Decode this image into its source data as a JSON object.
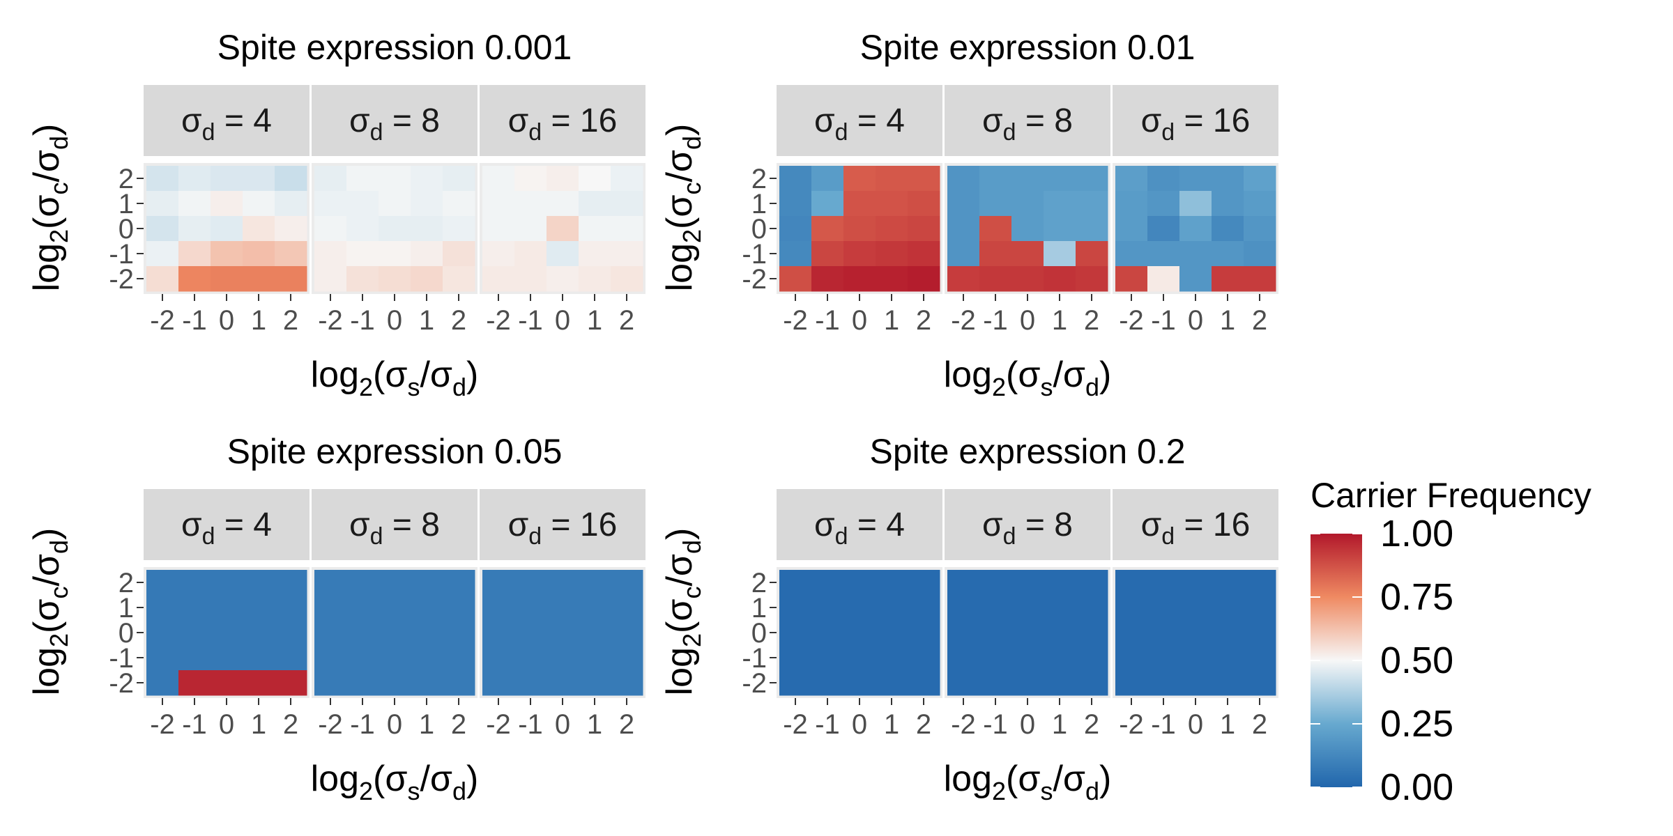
{
  "chart_data": {
    "type": "heatmap",
    "x_values": [
      -2,
      -1,
      0,
      1,
      2
    ],
    "y_values": [
      2,
      1,
      0,
      -1,
      -2
    ],
    "x_tick_labels": [
      "-2",
      "-1",
      "0",
      "1",
      "2"
    ],
    "y_tick_labels": [
      "2",
      "1",
      "0",
      "-1",
      "-2"
    ],
    "xlabel_base": "log",
    "xlabel_sub": "2",
    "xlabel_open": "(σ",
    "xlabel_num_sub": "s",
    "xlabel_slash": "/σ",
    "xlabel_den_sub": "d",
    "xlabel_close": ")",
    "ylabel_base": "log",
    "ylabel_sub": "2",
    "ylabel_open": "(σ",
    "ylabel_num_sub": "c",
    "ylabel_slash": "/σ",
    "ylabel_den_sub": "d",
    "ylabel_close": ")",
    "legend": {
      "title": "Carrier Frequency",
      "range": [
        0,
        1
      ],
      "ticks": [
        "0.00",
        "0.25",
        "0.50",
        "0.75",
        "1.00"
      ],
      "colors": {
        "low": "#2166ac",
        "lowmid": "#67a9cf",
        "mid": "#f7f7f7",
        "highmid": "#ef8a62",
        "high": "#b2182b"
      },
      "position": "right"
    },
    "panels": [
      {
        "title": "Spite expression 0.001",
        "facets": [
          {
            "label": "σ",
            "label_sub": "d",
            "label_eq": " = 4",
            "values": [
              [
                0.44,
                0.46,
                0.45,
                0.45,
                0.42
              ],
              [
                0.47,
                0.49,
                0.52,
                0.49,
                0.47
              ],
              [
                0.44,
                0.47,
                0.46,
                0.54,
                0.52
              ],
              [
                0.48,
                0.57,
                0.62,
                0.63,
                0.61
              ],
              [
                0.56,
                0.76,
                0.77,
                0.77,
                0.77
              ]
            ]
          },
          {
            "label": "σ",
            "label_sub": "d",
            "label_eq": " = 8",
            "values": [
              [
                0.47,
                0.49,
                0.49,
                0.48,
                0.47
              ],
              [
                0.48,
                0.48,
                0.49,
                0.48,
                0.49
              ],
              [
                0.49,
                0.48,
                0.47,
                0.47,
                0.48
              ],
              [
                0.52,
                0.51,
                0.51,
                0.52,
                0.55
              ],
              [
                0.52,
                0.55,
                0.56,
                0.57,
                0.54
              ]
            ]
          },
          {
            "label": "σ",
            "label_sub": "d",
            "label_eq": " = 16",
            "values": [
              [
                0.49,
                0.51,
                0.52,
                0.5,
                0.48
              ],
              [
                0.49,
                0.49,
                0.49,
                0.47,
                0.47
              ],
              [
                0.49,
                0.49,
                0.58,
                0.49,
                0.49
              ],
              [
                0.52,
                0.53,
                0.46,
                0.52,
                0.52
              ],
              [
                0.53,
                0.53,
                0.52,
                0.53,
                0.54
              ]
            ]
          }
        ]
      },
      {
        "title": "Spite expression 0.01",
        "facets": [
          {
            "label": "σ",
            "label_sub": "d",
            "label_eq": " = 4",
            "values": [
              [
                0.13,
                0.2,
                0.85,
                0.86,
                0.86
              ],
              [
                0.13,
                0.25,
                0.87,
                0.87,
                0.88
              ],
              [
                0.12,
                0.86,
                0.88,
                0.89,
                0.9
              ],
              [
                0.13,
                0.9,
                0.92,
                0.93,
                0.94
              ],
              [
                0.88,
                0.97,
                0.98,
                0.98,
                0.99
              ]
            ]
          },
          {
            "label": "σ",
            "label_sub": "d",
            "label_eq": " = 8",
            "values": [
              [
                0.17,
                0.2,
                0.2,
                0.2,
                0.2
              ],
              [
                0.17,
                0.2,
                0.2,
                0.22,
                0.22
              ],
              [
                0.17,
                0.88,
                0.2,
                0.22,
                0.22
              ],
              [
                0.17,
                0.9,
                0.9,
                0.36,
                0.9
              ],
              [
                0.92,
                0.93,
                0.93,
                0.94,
                0.93
              ]
            ]
          },
          {
            "label": "σ",
            "label_sub": "d",
            "label_eq": " = 16",
            "values": [
              [
                0.21,
                0.16,
                0.18,
                0.18,
                0.22
              ],
              [
                0.2,
                0.18,
                0.32,
                0.18,
                0.2
              ],
              [
                0.2,
                0.12,
                0.22,
                0.13,
                0.18
              ],
              [
                0.18,
                0.18,
                0.18,
                0.18,
                0.16
              ],
              [
                0.9,
                0.53,
                0.18,
                0.92,
                0.92
              ]
            ]
          }
        ]
      },
      {
        "title": "Spite expression 0.05",
        "facets": [
          {
            "label": "σ",
            "label_sub": "d",
            "label_eq": " = 4",
            "values": [
              [
                0.07,
                0.07,
                0.07,
                0.07,
                0.07
              ],
              [
                0.07,
                0.07,
                0.07,
                0.07,
                0.07
              ],
              [
                0.07,
                0.07,
                0.07,
                0.07,
                0.07
              ],
              [
                0.07,
                0.07,
                0.07,
                0.07,
                0.07
              ],
              [
                0.07,
                0.97,
                0.97,
                0.97,
                0.97
              ]
            ]
          },
          {
            "label": "σ",
            "label_sub": "d",
            "label_eq": " = 8",
            "values": [
              [
                0.08,
                0.08,
                0.08,
                0.08,
                0.08
              ],
              [
                0.08,
                0.08,
                0.08,
                0.08,
                0.08
              ],
              [
                0.08,
                0.08,
                0.08,
                0.08,
                0.08
              ],
              [
                0.08,
                0.08,
                0.08,
                0.08,
                0.08
              ],
              [
                0.08,
                0.08,
                0.08,
                0.08,
                0.08
              ]
            ]
          },
          {
            "label": "σ",
            "label_sub": "d",
            "label_eq": " = 16",
            "values": [
              [
                0.08,
                0.08,
                0.08,
                0.08,
                0.08
              ],
              [
                0.08,
                0.08,
                0.08,
                0.08,
                0.08
              ],
              [
                0.08,
                0.08,
                0.08,
                0.08,
                0.08
              ],
              [
                0.08,
                0.08,
                0.08,
                0.08,
                0.08
              ],
              [
                0.08,
                0.08,
                0.08,
                0.08,
                0.08
              ]
            ]
          }
        ]
      },
      {
        "title": "Spite expression 0.2",
        "facets": [
          {
            "label": "σ",
            "label_sub": "d",
            "label_eq": " = 4",
            "values": [
              [
                0.02,
                0.02,
                0.02,
                0.02,
                0.02
              ],
              [
                0.02,
                0.02,
                0.02,
                0.02,
                0.02
              ],
              [
                0.02,
                0.02,
                0.02,
                0.02,
                0.02
              ],
              [
                0.02,
                0.02,
                0.02,
                0.02,
                0.02
              ],
              [
                0.02,
                0.02,
                0.02,
                0.02,
                0.02
              ]
            ]
          },
          {
            "label": "σ",
            "label_sub": "d",
            "label_eq": " = 8",
            "values": [
              [
                0.02,
                0.02,
                0.02,
                0.02,
                0.02
              ],
              [
                0.02,
                0.02,
                0.02,
                0.02,
                0.02
              ],
              [
                0.02,
                0.02,
                0.02,
                0.02,
                0.02
              ],
              [
                0.02,
                0.02,
                0.02,
                0.02,
                0.02
              ],
              [
                0.02,
                0.02,
                0.02,
                0.02,
                0.02
              ]
            ]
          },
          {
            "label": "σ",
            "label_sub": "d",
            "label_eq": " = 16",
            "values": [
              [
                0.02,
                0.02,
                0.02,
                0.02,
                0.02
              ],
              [
                0.02,
                0.02,
                0.02,
                0.02,
                0.02
              ],
              [
                0.02,
                0.02,
                0.02,
                0.02,
                0.02
              ],
              [
                0.02,
                0.02,
                0.02,
                0.02,
                0.02
              ],
              [
                0.02,
                0.02,
                0.02,
                0.02,
                0.02
              ]
            ]
          }
        ]
      }
    ]
  }
}
